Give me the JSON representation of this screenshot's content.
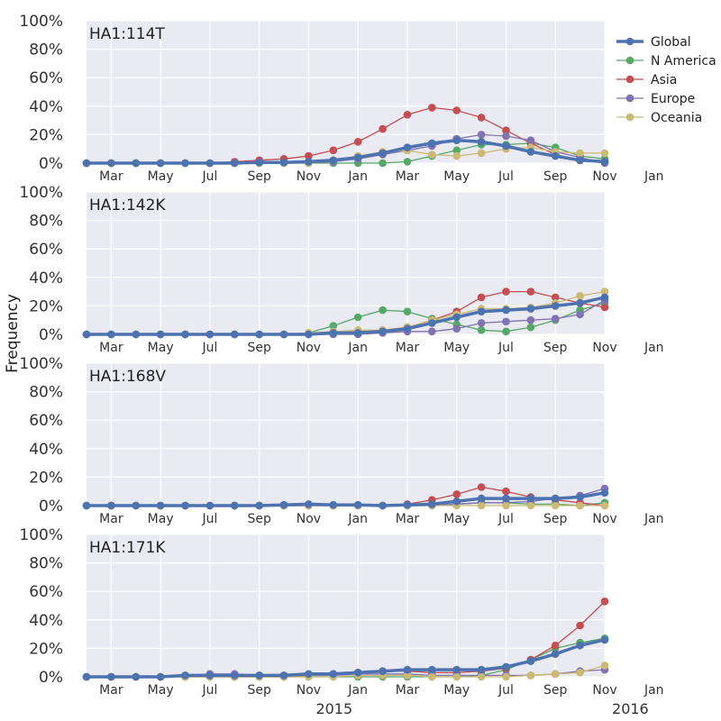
{
  "chart_data": {
    "type": "line",
    "ylabel": "Frequency",
    "ylim": [
      0,
      1
    ],
    "y_ticks": [
      "0%",
      "20%",
      "40%",
      "60%",
      "80%",
      "100%"
    ],
    "x_tick_labels": [
      "Mar",
      "May",
      "Jul",
      "Sep",
      "Nov",
      "Jan",
      "Mar",
      "May",
      "Jul",
      "Sep",
      "Nov",
      "Jan"
    ],
    "year_labels": [
      "2015",
      "2016"
    ],
    "legend_position": "top-right",
    "grid": true,
    "series_styles": [
      {
        "name": "Global",
        "color": "#4c72b0",
        "width": 3.5
      },
      {
        "name": "N America",
        "color": "#55a868",
        "width": 1.3
      },
      {
        "name": "Asia",
        "color": "#c44e52",
        "width": 1.3
      },
      {
        "name": "Europe",
        "color": "#8172b2",
        "width": 1.3
      },
      {
        "name": "Oceania",
        "color": "#ccb974",
        "width": 1.3
      }
    ],
    "panels": [
      {
        "title": "HA1:114T",
        "series": [
          {
            "name": "Global",
            "values": [
              0,
              0,
              0,
              0,
              0,
              0,
              0,
              0.005,
              0.005,
              0.01,
              0.02,
              0.04,
              0.07,
              0.11,
              0.14,
              0.16,
              0.15,
              0.12,
              0.08,
              0.05,
              0.02,
              0.01
            ]
          },
          {
            "name": "N America",
            "values": [
              0,
              0,
              0,
              0,
              0,
              0,
              0,
              0,
              0,
              0,
              0,
              0,
              0,
              0.01,
              0.05,
              0.09,
              0.13,
              0.13,
              0.14,
              0.11,
              0.05,
              0.03
            ]
          },
          {
            "name": "Asia",
            "values": [
              0,
              0,
              0,
              0,
              0,
              0,
              0.01,
              0.02,
              0.03,
              0.05,
              0.09,
              0.15,
              0.24,
              0.34,
              0.39,
              0.37,
              0.32,
              0.23,
              0.14,
              0.06,
              0.02,
              0.01
            ]
          },
          {
            "name": "Europe",
            "values": [
              0,
              0,
              0,
              0,
              0,
              0,
              0,
              0,
              0,
              0,
              0.01,
              0.03,
              0.06,
              0.09,
              0.12,
              0.17,
              0.2,
              0.19,
              0.16,
              0.08,
              0.04,
              0
            ]
          },
          {
            "name": "Oceania",
            "values": [
              0,
              0,
              0,
              0,
              0,
              0,
              0,
              0,
              0,
              0,
              0.02,
              0.05,
              0.08,
              0.09,
              0.06,
              0.05,
              0.07,
              0.1,
              0.11,
              0.08,
              0.07,
              0.07
            ]
          }
        ]
      },
      {
        "title": "HA1:142K",
        "series": [
          {
            "name": "Global",
            "values": [
              0,
              0,
              0,
              0,
              0,
              0,
              0,
              0,
              0,
              0,
              0.01,
              0.01,
              0.02,
              0.04,
              0.08,
              0.12,
              0.16,
              0.17,
              0.18,
              0.2,
              0.22,
              0.26
            ]
          },
          {
            "name": "N America",
            "values": [
              0,
              0,
              0,
              0,
              0,
              0,
              0,
              0,
              0,
              0.01,
              0.06,
              0.12,
              0.17,
              0.16,
              0.11,
              0.07,
              0.03,
              0.02,
              0.05,
              0.1,
              0.17,
              0.22
            ]
          },
          {
            "name": "Asia",
            "values": [
              0,
              0,
              0,
              0,
              0,
              0,
              0,
              0,
              0,
              0,
              0.01,
              0.02,
              0.03,
              0.05,
              0.1,
              0.16,
              0.26,
              0.3,
              0.3,
              0.26,
              0.22,
              0.19
            ]
          },
          {
            "name": "Europe",
            "values": [
              0,
              0,
              0,
              0,
              0,
              0,
              0,
              0,
              0,
              0,
              0,
              0,
              0.01,
              0.02,
              0.02,
              0.04,
              0.08,
              0.09,
              0.1,
              0.11,
              0.14,
              0.24
            ]
          },
          {
            "name": "Oceania",
            "values": [
              0,
              0,
              0,
              0,
              0,
              0,
              0,
              0,
              0,
              0.01,
              0.02,
              0.03,
              0.03,
              0.05,
              0.1,
              0.14,
              0.18,
              0.18,
              0.19,
              0.22,
              0.27,
              0.3
            ]
          }
        ]
      },
      {
        "title": "HA1:168V",
        "series": [
          {
            "name": "Global",
            "values": [
              0,
              0,
              0,
              0,
              0,
              0,
              0,
              0,
              0.005,
              0.01,
              0.005,
              0.005,
              0,
              0.005,
              0.01,
              0.03,
              0.05,
              0.05,
              0.05,
              0.05,
              0.06,
              0.09
            ]
          },
          {
            "name": "N America",
            "values": [
              0,
              0,
              0,
              0,
              0,
              0,
              0,
              0,
              0,
              0,
              0,
              0,
              0,
              0,
              0,
              0.01,
              0.02,
              0.02,
              0.01,
              0.01,
              0,
              0.02
            ]
          },
          {
            "name": "Asia",
            "values": [
              0,
              0,
              0,
              0,
              0,
              0,
              0,
              0,
              0,
              0,
              0,
              0,
              0,
              0.01,
              0.04,
              0.08,
              0.13,
              0.1,
              0.06,
              0.04,
              0.02,
              0
            ]
          },
          {
            "name": "Europe",
            "values": [
              0,
              0,
              0,
              0,
              0,
              0,
              0,
              0,
              0,
              0,
              0,
              0,
              0,
              0,
              0,
              0.01,
              0.02,
              0.02,
              0.03,
              0.05,
              0.07,
              0.12
            ]
          },
          {
            "name": "Oceania",
            "values": [
              0,
              0,
              0,
              0,
              0,
              0,
              0,
              0,
              0,
              0,
              0,
              0,
              0,
              0,
              0,
              0,
              0,
              0,
              0,
              0,
              0,
              0
            ]
          }
        ]
      },
      {
        "title": "HA1:171K",
        "series": [
          {
            "name": "Global",
            "values": [
              0,
              0,
              0,
              0,
              0.01,
              0.01,
              0.01,
              0.01,
              0.01,
              0.02,
              0.02,
              0.03,
              0.04,
              0.05,
              0.05,
              0.05,
              0.05,
              0.07,
              0.11,
              0.16,
              0.22,
              0.26
            ]
          },
          {
            "name": "N America",
            "values": [
              0,
              0,
              0,
              0,
              0,
              0,
              0,
              0,
              0,
              0,
              0,
              0,
              0,
              0,
              0,
              0,
              0.01,
              0.05,
              0.12,
              0.2,
              0.24,
              0.27
            ]
          },
          {
            "name": "Asia",
            "values": [
              0,
              0,
              0,
              0,
              0,
              0,
              0,
              0,
              0,
              0.01,
              0.02,
              0.03,
              0.04,
              0.04,
              0.03,
              0.03,
              0.04,
              0.06,
              0.12,
              0.22,
              0.36,
              0.53
            ]
          },
          {
            "name": "Europe",
            "values": [
              0,
              0,
              0,
              0,
              0.01,
              0.02,
              0.02,
              0.01,
              0.01,
              0.01,
              0.01,
              0.02,
              0.02,
              0.02,
              0.01,
              0.01,
              0.01,
              0.01,
              0.01,
              0.02,
              0.04,
              0.05
            ]
          },
          {
            "name": "Oceania",
            "values": [
              0,
              0,
              0,
              0,
              0,
              0,
              0,
              0,
              0,
              0,
              0,
              0.01,
              0.01,
              0.01,
              0,
              0,
              0,
              0,
              0.01,
              0.02,
              0.03,
              0.08
            ]
          }
        ]
      }
    ]
  }
}
